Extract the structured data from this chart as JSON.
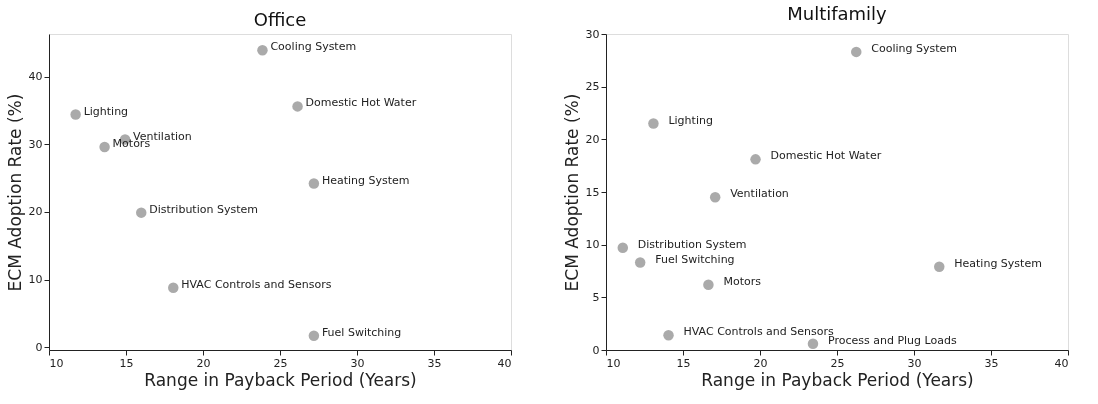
{
  "chart_data": [
    {
      "type": "scatter",
      "title": "Office",
      "xlabel": "Range in Payback Period (Years)",
      "ylabel": "ECM Adoption Rate (%)",
      "xlim": [
        10,
        40
      ],
      "xticks": [
        10,
        15,
        20,
        25,
        30,
        35,
        40
      ],
      "ylim": [
        -0.4,
        46.3
      ],
      "yticks": [
        0,
        10,
        20,
        30,
        40
      ],
      "grid": false,
      "legend": false,
      "marker": "circle",
      "series": [
        {
          "color": "#aaaaaa",
          "x": [
            23.86,
            26.14,
            11.73,
            14.94,
            13.61,
            27.2,
            15.99,
            18.07,
            27.2
          ],
          "values": [
            43.9,
            35.6,
            34.4,
            30.7,
            29.6,
            24.2,
            19.9,
            8.8,
            1.7
          ]
        }
      ],
      "annotations": [
        {
          "text": "Cooling System",
          "x": 23.86,
          "y": 43.9
        },
        {
          "text": "Domestic Hot Water",
          "x": 26.14,
          "y": 35.6
        },
        {
          "text": "Lighting",
          "x": 11.73,
          "y": 34.4
        },
        {
          "text": "Ventilation",
          "x": 14.94,
          "y": 30.7
        },
        {
          "text": "Motors",
          "x": 13.61,
          "y": 29.6
        },
        {
          "text": "Heating System",
          "x": 27.2,
          "y": 24.2
        },
        {
          "text": "Distribution System",
          "x": 15.99,
          "y": 19.9
        },
        {
          "text": "HVAC Controls and Sensors",
          "x": 18.07,
          "y": 8.8
        },
        {
          "text": "Fuel Switching",
          "x": 27.2,
          "y": 1.7
        }
      ]
    },
    {
      "type": "scatter",
      "title": "Multifamily",
      "xlabel": "Range in Payback Period (Years)",
      "ylabel": "ECM Adoption Rate (%)",
      "xlim": [
        10,
        40
      ],
      "xticks": [
        10,
        15,
        20,
        25,
        30,
        35,
        40
      ],
      "ylim": [
        0,
        30
      ],
      "yticks": [
        0,
        5,
        10,
        15,
        20,
        25,
        30
      ],
      "grid": false,
      "legend": false,
      "marker": "circle",
      "series": [
        {
          "color": "#aaaaaa",
          "x": [
            26.25,
            13.08,
            19.71,
            17.09,
            11.09,
            12.22,
            16.65,
            31.64,
            14.06,
            23.44
          ],
          "values": [
            28.3,
            21.5,
            18.1,
            14.5,
            9.7,
            8.3,
            6.2,
            7.9,
            1.4,
            0.6
          ]
        }
      ],
      "annotations": [
        {
          "text": "Cooling System",
          "x": 26.25,
          "y": 28.3
        },
        {
          "text": "Lighting",
          "x": 13.08,
          "y": 21.5
        },
        {
          "text": "Domestic Hot Water",
          "x": 19.71,
          "y": 18.1
        },
        {
          "text": "Ventilation",
          "x": 17.09,
          "y": 14.5
        },
        {
          "text": "Distribution System",
          "x": 11.09,
          "y": 9.7
        },
        {
          "text": "Fuel Switching",
          "x": 12.22,
          "y": 8.3
        },
        {
          "text": "Motors",
          "x": 16.65,
          "y": 6.2
        },
        {
          "text": "Heating System",
          "x": 31.64,
          "y": 7.9
        },
        {
          "text": "HVAC Controls and Sensors",
          "x": 14.06,
          "y": 1.4
        },
        {
          "text": "Process and Plug Loads",
          "x": 23.44,
          "y": 0.6
        }
      ]
    }
  ]
}
